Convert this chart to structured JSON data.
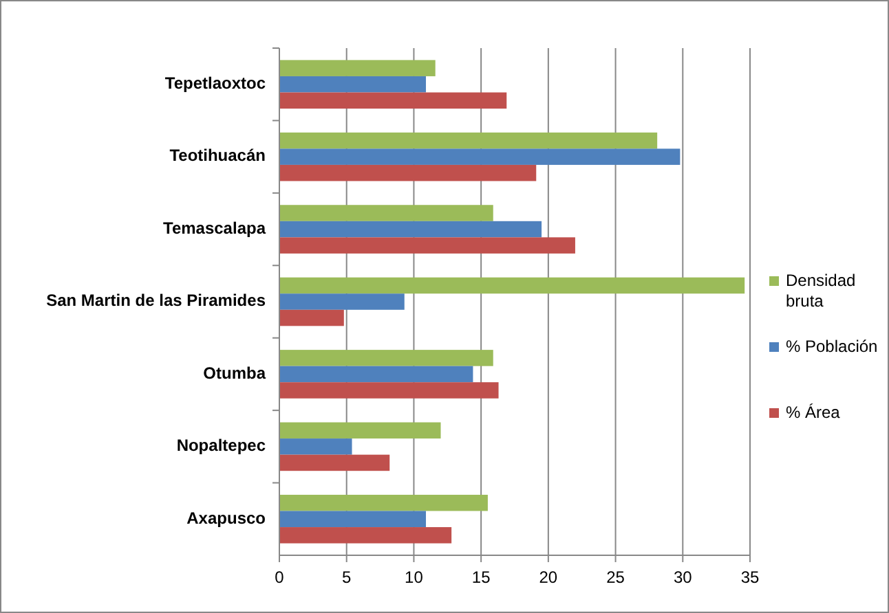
{
  "chart_data": {
    "type": "bar",
    "orientation": "horizontal",
    "categories": [
      "Tepetlaoxtoc",
      "Teotihuacán",
      "Temascalapa",
      "San Martin de las Piramides",
      "Otumba",
      "Nopaltepec",
      "Axapusco"
    ],
    "series": [
      {
        "name": "Densidad bruta",
        "color": "#9bbb59",
        "values": [
          11.6,
          28.1,
          15.9,
          34.6,
          15.9,
          12.0,
          15.5
        ]
      },
      {
        "name": "% Población",
        "color": "#4f81bd",
        "values": [
          10.9,
          29.8,
          19.5,
          9.3,
          14.4,
          5.4,
          10.9
        ]
      },
      {
        "name": "% Área",
        "color": "#c0504d",
        "values": [
          16.9,
          19.1,
          22.0,
          4.8,
          16.3,
          8.2,
          12.8
        ]
      }
    ],
    "xlim": [
      0,
      35
    ],
    "xticks": [
      0,
      5,
      10,
      15,
      20,
      25,
      30,
      35
    ],
    "grid": "x",
    "legend": "right"
  }
}
